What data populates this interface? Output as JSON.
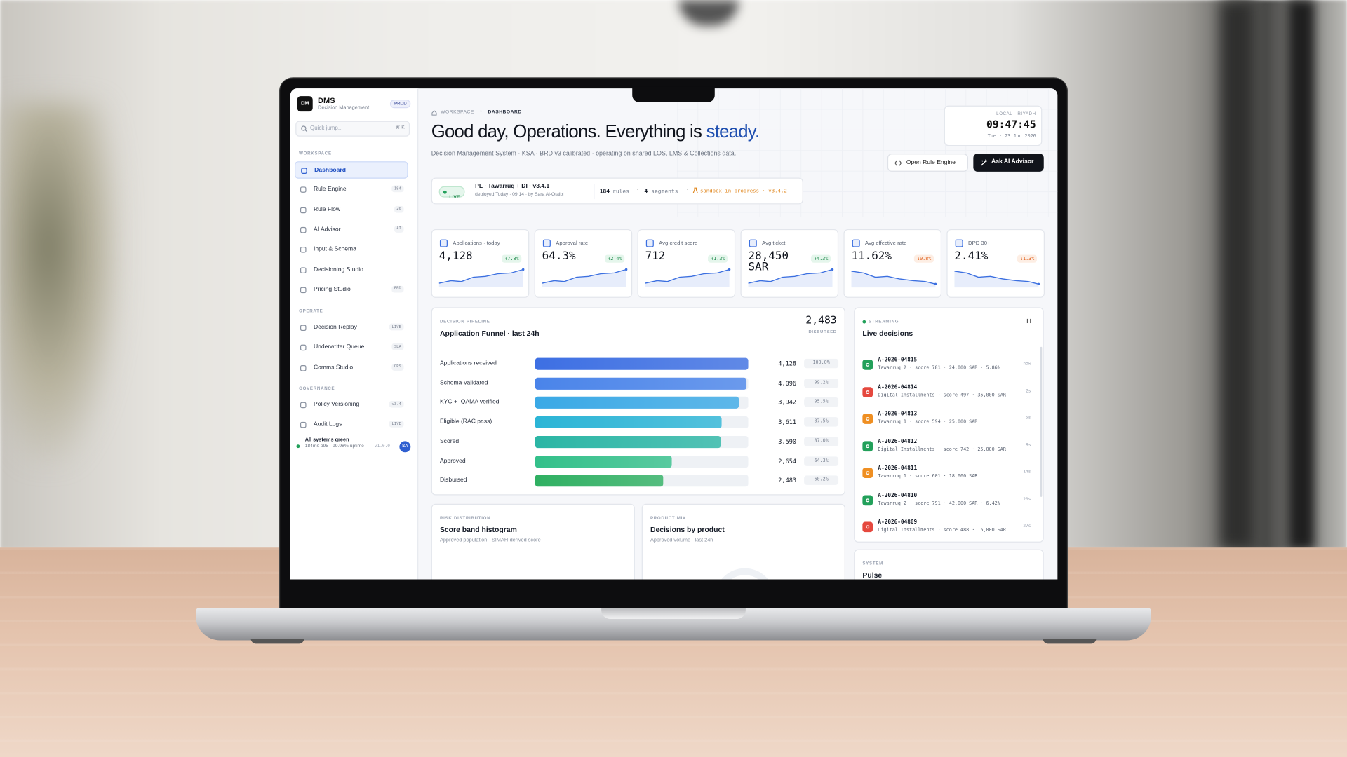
{
  "sidebar": {
    "logo": "DM",
    "brand": "DMS",
    "brand_sub": "Decision Management",
    "plan": "PROD",
    "search": "Quick jump...",
    "search_kbd": "⌘ K",
    "sections": [
      {
        "title": "WORKSPACE",
        "items": [
          {
            "label": "Dashboard",
            "active": true
          },
          {
            "label": "Rule Engine",
            "badge": "184"
          },
          {
            "label": "Rule Flow",
            "badge": "26"
          },
          {
            "label": "AI Advisor",
            "badge": "AI"
          },
          {
            "label": "Input & Schema"
          },
          {
            "label": "Decisioning Studio"
          },
          {
            "label": "Pricing Studio",
            "badge": "BRD"
          }
        ]
      },
      {
        "title": "OPERATE",
        "items": [
          {
            "label": "Decision Replay",
            "badge": "LIVE"
          },
          {
            "label": "Underwriter Queue",
            "badge": "SLA"
          },
          {
            "label": "Comms Studio",
            "badge": "OPS"
          }
        ]
      },
      {
        "title": "GOVERNANCE",
        "items": [
          {
            "label": "Policy Versioning",
            "badge": "v3.4"
          },
          {
            "label": "Audit Logs",
            "badge": "LIVE"
          }
        ]
      }
    ],
    "status": {
      "title": "All systems green",
      "detail": "184ms p95 · 99.98% uptime",
      "version": "v1.0.0",
      "avatar": "SA"
    }
  },
  "header": {
    "breadcrumb": [
      "WORKSPACE",
      "DASHBOARD"
    ],
    "greeting": "Good day, Operations. Everything is ",
    "greeting_accent": "steady.",
    "subtitle": "Decision Management System · KSA · BRD v3 calibrated · operating on shared LOS, LMS & Collections data.",
    "clock": {
      "label": "LOCAL · RIYADH",
      "time": "09:47:45",
      "date": "Tue · 23 Jun 2026"
    },
    "buttons": [
      "Open Rule Engine",
      "Ask AI Advisor"
    ]
  },
  "deploy": {
    "status": "LIVE",
    "name": "PL · Tawarruq + DI · v3.4.1",
    "meta": "deployed Today · 09:14 · by Sara Al-Otaibi",
    "rules": "184",
    "rules_label": "rules",
    "segments": "4",
    "segments_label": "segments",
    "sandbox": "sandbox in-progress · v3.4.2"
  },
  "kpis": [
    {
      "label": "Applications · today",
      "value": "4,128",
      "delta": "↑7.8%",
      "trend": "up",
      "color": "#3b6fe0"
    },
    {
      "label": "Approval rate",
      "value": "64.3%",
      "delta": "↑2.4%",
      "trend": "up",
      "color": "#3b6fe0"
    },
    {
      "label": "Avg credit score",
      "value": "712",
      "delta": "↑1.3%",
      "trend": "up",
      "color": "#3b6fe0"
    },
    {
      "label": "Avg ticket",
      "value": "28,450 SAR",
      "delta": "↑4.3%",
      "trend": "up",
      "color": "#3b6fe0"
    },
    {
      "label": "Avg effective rate",
      "value": "11.62%",
      "delta": "↓0.8%",
      "trend": "down",
      "color": "#3b6fe0"
    },
    {
      "label": "DPD 30+",
      "value": "2.41%",
      "delta": "↓1.3%",
      "trend": "down",
      "color": "#3b6fe0"
    }
  ],
  "funnel": {
    "eyebrow": "DECISION PIPELINE",
    "title": "Application Funnel · last 24h",
    "total": "2,483",
    "total_label": "DISBURSED",
    "categories": [
      "Applications received",
      "Schema-validated",
      "KYC + IQAMA verified",
      "Eligible (RAC pass)",
      "Scored",
      "Approved",
      "Disbursed"
    ],
    "values": [
      4128,
      4096,
      3942,
      3611,
      3590,
      2654,
      2483
    ],
    "value_labels": [
      "4,128",
      "4,096",
      "3,942",
      "3,611",
      "3,590",
      "2,654",
      "2,483"
    ],
    "shares": [
      100,
      99.2,
      95.5,
      87.5,
      87,
      64.3,
      60.2
    ],
    "share_labels": [
      "100.0%",
      "99.2%",
      "95.5%",
      "87.5%",
      "87.0%",
      "64.3%",
      "60.2%"
    ],
    "colors": [
      "#3d6fe3",
      "#4a84ea",
      "#3aa9e6",
      "#2cb5d6",
      "#2bb6a5",
      "#33c08a",
      "#2fb062"
    ]
  },
  "live": {
    "eyebrow": "STREAMING",
    "title": "Live decisions",
    "items": [
      {
        "id": "A-2026-04815",
        "detail": "Tawarruq 2 · score 781 · 24,000 SAR · 5.86%",
        "age": "now",
        "color": "#22a05a"
      },
      {
        "id": "A-2026-04814",
        "detail": "Digital Installments · score 497 · 35,000 SAR",
        "age": "2s",
        "color": "#e5483e"
      },
      {
        "id": "A-2026-04813",
        "detail": "Tawarruq 1 · score 594 · 25,000 SAR",
        "age": "5s",
        "color": "#ef8f22"
      },
      {
        "id": "A-2026-04812",
        "detail": "Digital Installments · score 742 · 25,000 SAR",
        "age": "8s",
        "color": "#22a05a"
      },
      {
        "id": "A-2026-04811",
        "detail": "Tawarruq 1 · score 601 · 18,000 SAR",
        "age": "14s",
        "color": "#ef8f22"
      },
      {
        "id": "A-2026-04810",
        "detail": "Tawarruq 2 · score 791 · 42,000 SAR · 6.42%",
        "age": "20s",
        "color": "#22a05a"
      },
      {
        "id": "A-2026-04809",
        "detail": "Digital Installments · score 488 · 15,000 SAR",
        "age": "27s",
        "color": "#e5483e"
      }
    ]
  },
  "cards": [
    {
      "eyebrow": "RISK DISTRIBUTION",
      "title": "Score band histogram",
      "subtitle": "Approved population · SIMAH-derived score"
    },
    {
      "eyebrow": "PRODUCT MIX",
      "title": "Decisions by product",
      "subtitle": "Approved volume · last 24h"
    },
    {
      "eyebrow": "SYSTEM",
      "title": "Pulse"
    }
  ]
}
